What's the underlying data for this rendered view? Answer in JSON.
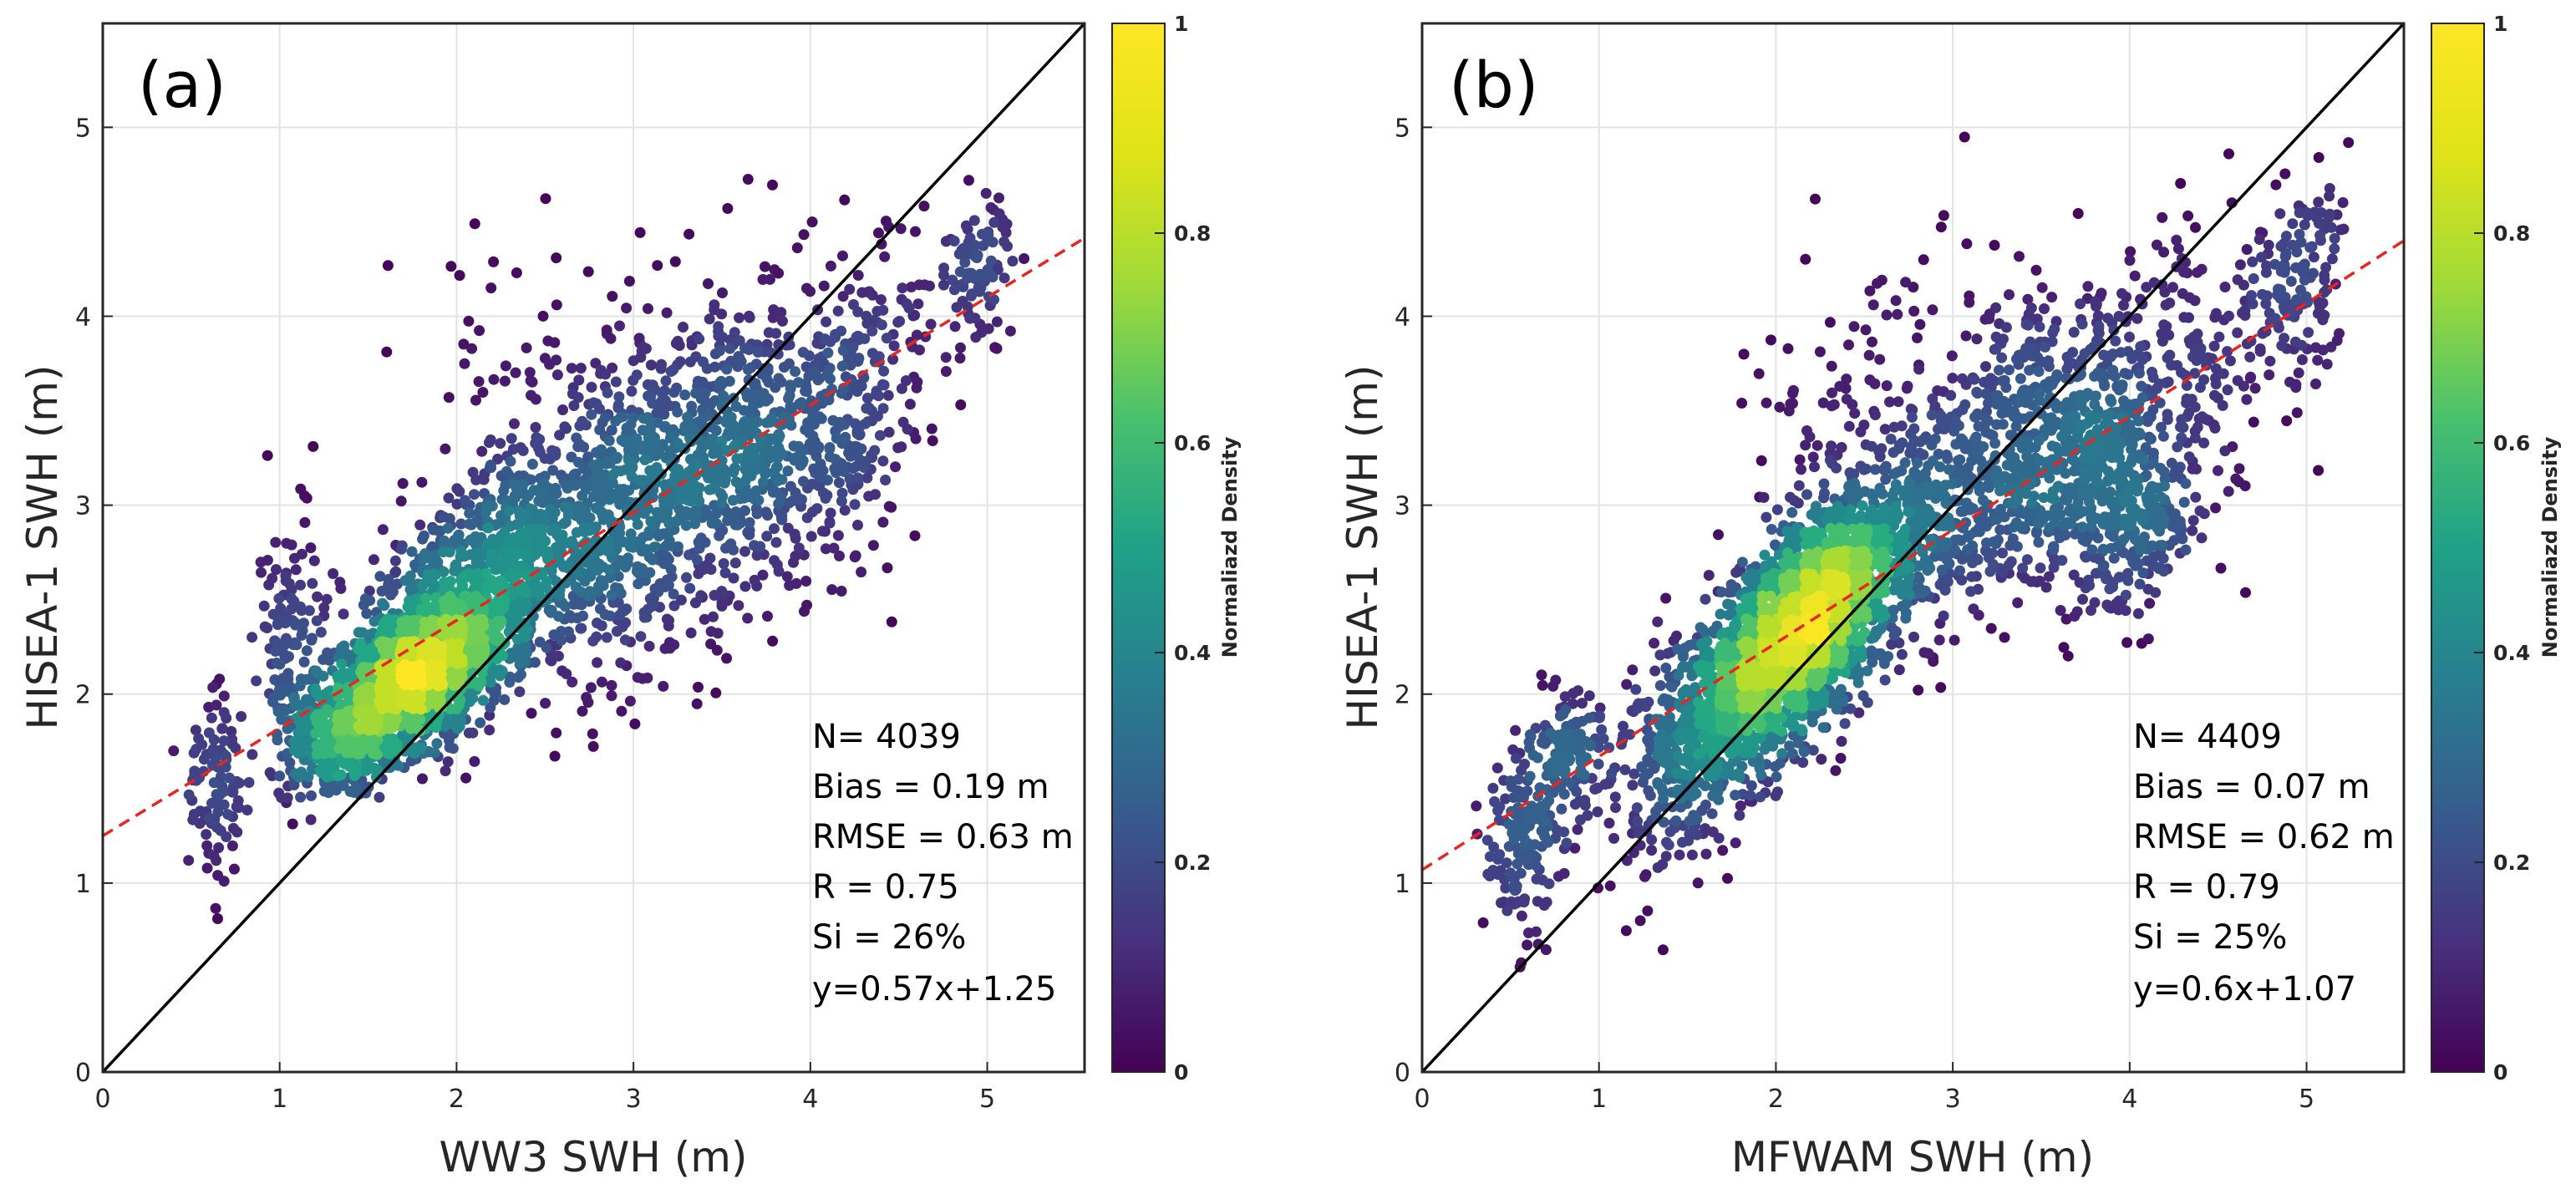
{
  "chart_data": [
    {
      "type": "scatter",
      "panel_label": "(a)",
      "xlabel": "WW3 SWH (m)",
      "ylabel": "HISEA-1 SWH (m)",
      "xlim": [
        0,
        5.55
      ],
      "ylim": [
        0,
        5.55
      ],
      "xticks": [
        0,
        1,
        2,
        3,
        4,
        5
      ],
      "yticks": [
        0,
        1,
        2,
        3,
        4,
        5
      ],
      "grid": true,
      "one_to_one_line": {
        "slope": 1,
        "intercept": 0,
        "color": "#000000"
      },
      "fit_line": {
        "slope": 0.57,
        "intercept": 1.25,
        "color": "#e8251f",
        "style": "dashed"
      },
      "stats": [
        "N= 4039",
        "Bias = 0.19 m",
        "RMSE = 0.63 m",
        "R = 0.75",
        "Si = 26%",
        "y=0.57x+1.25"
      ],
      "colorbar": {
        "label": "Normaliazd Density",
        "ticks": [
          "0",
          "0.2",
          "0.4",
          "0.6",
          "0.8",
          "1"
        ],
        "range": [
          0,
          1
        ],
        "colormap": "viridis"
      },
      "n_points": 4039,
      "clusters": [
        {
          "x": 1.75,
          "y": 2.1,
          "sx": 0.28,
          "sy": 0.22,
          "rho": 0.5,
          "w": 0.27
        },
        {
          "x": 2.2,
          "y": 2.6,
          "sx": 0.35,
          "sy": 0.35,
          "rho": 0.5,
          "w": 0.21
        },
        {
          "x": 3.1,
          "y": 3.0,
          "sx": 0.38,
          "sy": 0.45,
          "rho": 0.3,
          "w": 0.16
        },
        {
          "x": 3.6,
          "y": 3.3,
          "sx": 0.3,
          "sy": 0.4,
          "rho": 0.35,
          "w": 0.09
        },
        {
          "x": 4.15,
          "y": 3.35,
          "sx": 0.2,
          "sy": 0.35,
          "rho": 0.3,
          "w": 0.05
        },
        {
          "x": 1.4,
          "y": 1.75,
          "sx": 0.16,
          "sy": 0.15,
          "rho": 0.3,
          "w": 0.07
        },
        {
          "x": 1.05,
          "y": 2.25,
          "sx": 0.08,
          "sy": 0.35,
          "rho": 0.0,
          "w": 0.03
        },
        {
          "x": 0.65,
          "y": 1.55,
          "sx": 0.08,
          "sy": 0.25,
          "rho": 0.0,
          "w": 0.025
        },
        {
          "x": 4.95,
          "y": 4.25,
          "sx": 0.1,
          "sy": 0.2,
          "rho": 0.3,
          "w": 0.02
        },
        {
          "x": 2.8,
          "y": 3.7,
          "sx": 0.6,
          "sy": 0.4,
          "rho": 0.2,
          "w": 0.025
        },
        {
          "x": 4.4,
          "y": 4.0,
          "sx": 0.3,
          "sy": 0.35,
          "rho": 0.2,
          "w": 0.02
        }
      ]
    },
    {
      "type": "scatter",
      "panel_label": "(b)",
      "xlabel": "MFWAM SWH (m)",
      "ylabel": "HISEA-1 SWH (m)",
      "xlim": [
        0,
        5.55
      ],
      "ylim": [
        0,
        5.55
      ],
      "xticks": [
        0,
        1,
        2,
        3,
        4,
        5
      ],
      "yticks": [
        0,
        1,
        2,
        3,
        4,
        5
      ],
      "grid": true,
      "one_to_one_line": {
        "slope": 1,
        "intercept": 0,
        "color": "#000000"
      },
      "fit_line": {
        "slope": 0.6,
        "intercept": 1.07,
        "color": "#e8251f",
        "style": "dashed"
      },
      "stats": [
        "N= 4409",
        "Bias = 0.07 m",
        "RMSE = 0.62 m",
        "R = 0.79",
        "Si = 25%",
        "y=0.6x+1.07"
      ],
      "colorbar": {
        "label": "Normaliazd Density",
        "ticks": [
          "0",
          "0.2",
          "0.4",
          "0.6",
          "0.8",
          "1"
        ],
        "range": [
          0,
          1
        ],
        "colormap": "viridis"
      },
      "n_points": 4409,
      "clusters": [
        {
          "x": 2.3,
          "y": 2.55,
          "sx": 0.3,
          "sy": 0.3,
          "rho": 0.55,
          "w": 0.3
        },
        {
          "x": 1.95,
          "y": 2.1,
          "sx": 0.28,
          "sy": 0.28,
          "rho": 0.45,
          "w": 0.2
        },
        {
          "x": 1.5,
          "y": 1.7,
          "sx": 0.25,
          "sy": 0.35,
          "rho": 0.4,
          "w": 0.08
        },
        {
          "x": 3.7,
          "y": 3.4,
          "sx": 0.3,
          "sy": 0.35,
          "rho": 0.2,
          "w": 0.1
        },
        {
          "x": 4.0,
          "y": 2.95,
          "sx": 0.25,
          "sy": 0.25,
          "rho": 0.2,
          "w": 0.06
        },
        {
          "x": 3.2,
          "y": 3.1,
          "sx": 0.3,
          "sy": 0.35,
          "rho": 0.3,
          "w": 0.07
        },
        {
          "x": 0.6,
          "y": 1.25,
          "sx": 0.12,
          "sy": 0.25,
          "rho": 0.2,
          "w": 0.04
        },
        {
          "x": 0.85,
          "y": 1.75,
          "sx": 0.08,
          "sy": 0.15,
          "rho": 0.0,
          "w": 0.02
        },
        {
          "x": 4.95,
          "y": 4.15,
          "sx": 0.15,
          "sy": 0.3,
          "rho": 0.3,
          "w": 0.03
        },
        {
          "x": 2.7,
          "y": 3.6,
          "sx": 0.5,
          "sy": 0.4,
          "rho": 0.2,
          "w": 0.03
        },
        {
          "x": 4.4,
          "y": 3.8,
          "sx": 0.3,
          "sy": 0.35,
          "rho": 0.2,
          "w": 0.03
        }
      ]
    }
  ]
}
